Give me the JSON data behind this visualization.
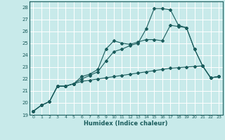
{
  "xlabel": "Humidex (Indice chaleur)",
  "background_color": "#c8eaea",
  "grid_color": "#ffffff",
  "line_color": "#1a5c5c",
  "xlim": [
    -0.5,
    23.5
  ],
  "ylim": [
    19,
    28.5
  ],
  "xticks": [
    0,
    1,
    2,
    3,
    4,
    5,
    6,
    7,
    8,
    9,
    10,
    11,
    12,
    13,
    14,
    15,
    16,
    17,
    18,
    19,
    20,
    21,
    22,
    23
  ],
  "yticks": [
    19,
    20,
    21,
    22,
    23,
    24,
    25,
    26,
    27,
    28
  ],
  "line1_x": [
    0,
    1,
    2,
    3,
    4,
    5,
    6,
    7,
    8,
    9,
    10,
    11,
    12,
    13,
    14,
    15,
    16,
    17,
    18,
    19,
    20,
    21,
    22,
    23
  ],
  "line1_y": [
    19.3,
    19.8,
    20.1,
    21.4,
    21.4,
    21.6,
    21.8,
    21.9,
    22.0,
    22.1,
    22.2,
    22.3,
    22.4,
    22.5,
    22.6,
    22.7,
    22.8,
    22.9,
    22.95,
    23.0,
    23.05,
    23.1,
    22.1,
    22.2
  ],
  "line2_x": [
    0,
    1,
    2,
    3,
    4,
    5,
    6,
    7,
    8,
    9,
    10,
    11,
    12,
    13,
    14,
    15,
    16,
    17,
    18,
    19,
    20,
    21,
    22,
    23
  ],
  "line2_y": [
    19.3,
    19.8,
    20.1,
    21.4,
    21.4,
    21.6,
    22.2,
    22.4,
    22.8,
    24.5,
    25.2,
    25.0,
    24.9,
    25.1,
    25.3,
    25.3,
    25.2,
    26.5,
    26.4,
    26.3,
    24.5,
    23.1,
    22.1,
    22.2
  ],
  "line3_x": [
    0,
    1,
    2,
    3,
    4,
    5,
    6,
    7,
    8,
    9,
    10,
    11,
    12,
    13,
    14,
    15,
    16,
    17,
    18,
    19,
    20,
    21,
    22,
    23
  ],
  "line3_y": [
    19.3,
    19.8,
    20.1,
    21.4,
    21.4,
    21.6,
    22.0,
    22.3,
    22.6,
    23.5,
    24.3,
    24.5,
    24.8,
    25.0,
    26.2,
    27.9,
    27.9,
    27.8,
    26.5,
    26.3,
    24.5,
    23.1,
    22.1,
    22.2
  ]
}
